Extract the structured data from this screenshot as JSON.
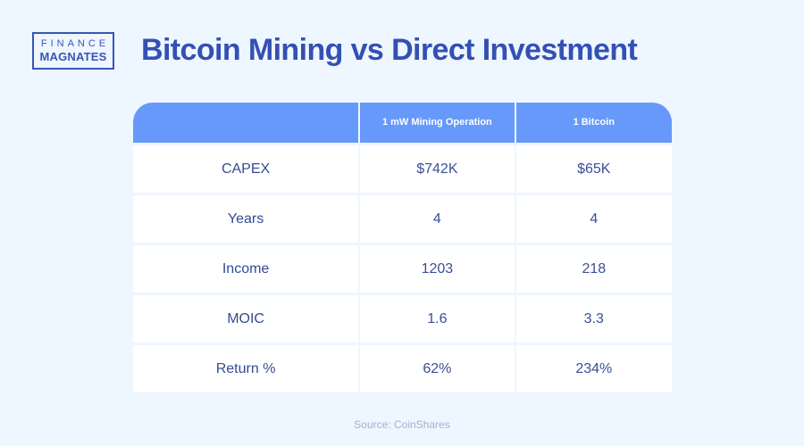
{
  "logo": {
    "line1": "FINANCE",
    "line2": "MAGNATES"
  },
  "title": "Bitcoin Mining vs Direct Investment",
  "table": {
    "headers": [
      "",
      "1 mW Mining Operation",
      "1 Bitcoin"
    ],
    "rows": [
      {
        "label": "CAPEX",
        "mining": "$742K",
        "bitcoin": "$65K"
      },
      {
        "label": "Years",
        "mining": "4",
        "bitcoin": "4"
      },
      {
        "label": "Income",
        "mining": "1203",
        "bitcoin": "218"
      },
      {
        "label": "MOIC",
        "mining": "1.6",
        "bitcoin": "3.3"
      },
      {
        "label": "Return %",
        "mining": "62%",
        "bitcoin": "234%"
      }
    ]
  },
  "source": "Source: CoinShares",
  "colors": {
    "background": "#eef6ff",
    "accent": "#3450b4",
    "header": "#6699fa",
    "cell_text": "#3a4f97",
    "source_text": "#a4b2d1"
  }
}
